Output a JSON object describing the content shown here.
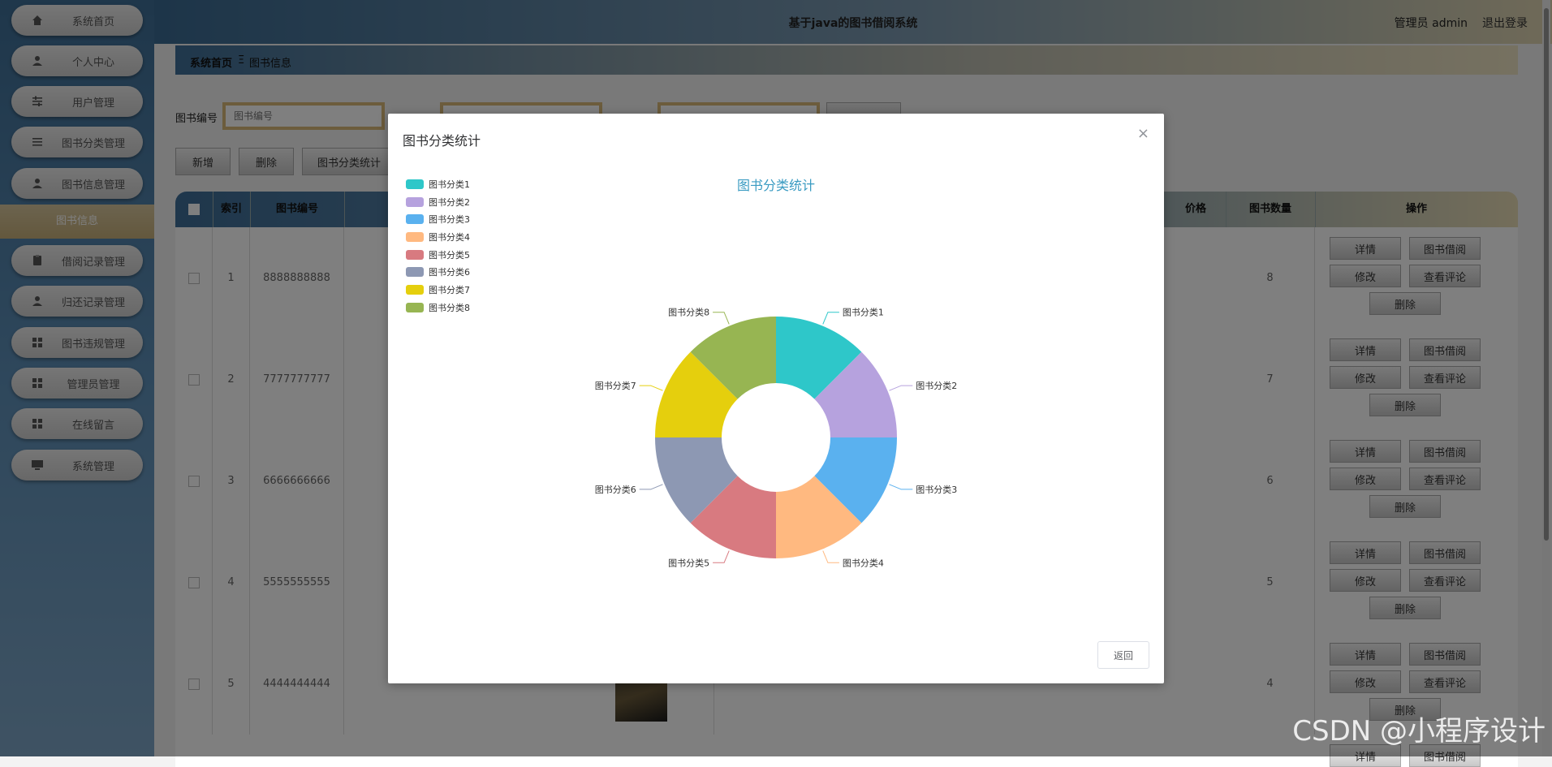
{
  "app": {
    "title": "基于java的图书借阅系统",
    "admin_text": "管理员 admin",
    "logout": "退出登录"
  },
  "sidebar": {
    "items": [
      {
        "label": "系统首页",
        "icon": "home-icon"
      },
      {
        "label": "个人中心",
        "icon": "user-icon"
      },
      {
        "label": "用户管理",
        "icon": "sliders-icon"
      },
      {
        "label": "图书分类管理",
        "icon": "list-icon"
      },
      {
        "label": "图书信息管理",
        "icon": "user-icon"
      },
      {
        "label": "借阅记录管理",
        "icon": "clipboard-icon"
      },
      {
        "label": "归还记录管理",
        "icon": "user-icon"
      },
      {
        "label": "图书违规管理",
        "icon": "grid-icon"
      },
      {
        "label": "管理员管理",
        "icon": "grid-icon"
      },
      {
        "label": "在线留言",
        "icon": "grid-icon"
      },
      {
        "label": "系统管理",
        "icon": "monitor-icon"
      }
    ],
    "active_sub": "图书信息"
  },
  "breadcrumb": {
    "home": "系统首页",
    "sep": "Ξ",
    "current": "图书信息"
  },
  "search": {
    "label1": "图书编号",
    "placeholder1": "图书编号"
  },
  "toolbar": {
    "add": "新增",
    "delete": "删除",
    "stats": "图书分类统计"
  },
  "table": {
    "headers": {
      "index": "索引",
      "code": "图书编号",
      "price": "价格",
      "qty": "图书数量",
      "ops": "操作"
    },
    "rows": [
      {
        "index": "1",
        "code": "8888888888",
        "qty": "8"
      },
      {
        "index": "2",
        "code": "7777777777",
        "qty": "7"
      },
      {
        "index": "3",
        "code": "6666666666",
        "qty": "6"
      },
      {
        "index": "4",
        "code": "5555555555",
        "qty": "5"
      },
      {
        "index": "5",
        "code": "4444444444",
        "qty": "4"
      }
    ],
    "ops": {
      "detail": "详情",
      "borrow": "图书借阅",
      "edit": "修改",
      "comments": "查看评论",
      "delete": "删除"
    }
  },
  "modal": {
    "title": "图书分类统计",
    "close": "×",
    "return": "返回"
  },
  "chart_data": {
    "type": "pie",
    "title": "图书分类统计",
    "categories": [
      "图书分类1",
      "图书分类2",
      "图书分类3",
      "图书分类4",
      "图书分类5",
      "图书分类6",
      "图书分类7",
      "图书分类8"
    ],
    "values": [
      1,
      1,
      1,
      1,
      1,
      1,
      1,
      1
    ],
    "colors": [
      "#2ec7c9",
      "#b6a2de",
      "#5ab1ef",
      "#ffb980",
      "#d87a80",
      "#8d98b3",
      "#e5cf0d",
      "#97b552"
    ],
    "legend": "top-left",
    "donut": true
  },
  "watermark": "CSDN @小程序设计"
}
